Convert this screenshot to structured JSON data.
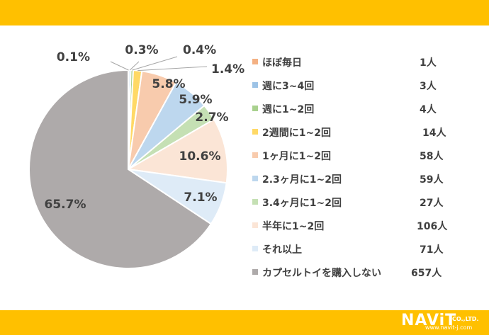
{
  "chart_data": {
    "type": "pie",
    "slices": [
      {
        "label": "ほぼ毎日",
        "count": "1人",
        "percent": 0.1,
        "percent_label": "0.1%",
        "color": "#f4b183"
      },
      {
        "label": "週に3~4回",
        "count": "3人",
        "percent": 0.3,
        "percent_label": "0.3%",
        "color": "#9dc3e6"
      },
      {
        "label": "週に1~2回",
        "count": "4人",
        "percent": 0.4,
        "percent_label": "0.4%",
        "color": "#a9d18e"
      },
      {
        "label": "2週間に1~2回",
        "count": "14人",
        "percent": 1.4,
        "percent_label": "1.4%",
        "color": "#ffd966"
      },
      {
        "label": "1ヶ月に1~2回",
        "count": "58人",
        "percent": 5.8,
        "percent_label": "5.8%",
        "color": "#f8cbad"
      },
      {
        "label": "2.3ヶ月に1~2回",
        "count": "59人",
        "percent": 5.9,
        "percent_label": "5.9%",
        "color": "#bdd7ee"
      },
      {
        "label": "3.4ヶ月に1~2回",
        "count": "27人",
        "percent": 2.7,
        "percent_label": "2.7%",
        "color": "#c5e0b4"
      },
      {
        "label": "半年に1~2回",
        "count": "106人",
        "percent": 10.6,
        "percent_label": "10.6%",
        "color": "#fbe5d6"
      },
      {
        "label": "それ以上",
        "count": "71人",
        "percent": 7.1,
        "percent_label": "7.1%",
        "color": "#deebf7"
      },
      {
        "label": "カプセルトイを購入しない",
        "count": "657人",
        "percent": 65.7,
        "percent_label": "65.7%",
        "color": "#aeaaaa"
      }
    ]
  },
  "logo": {
    "main": "NAViT",
    "company": "CO.,LTD.",
    "url": "www.navit-j.com"
  }
}
